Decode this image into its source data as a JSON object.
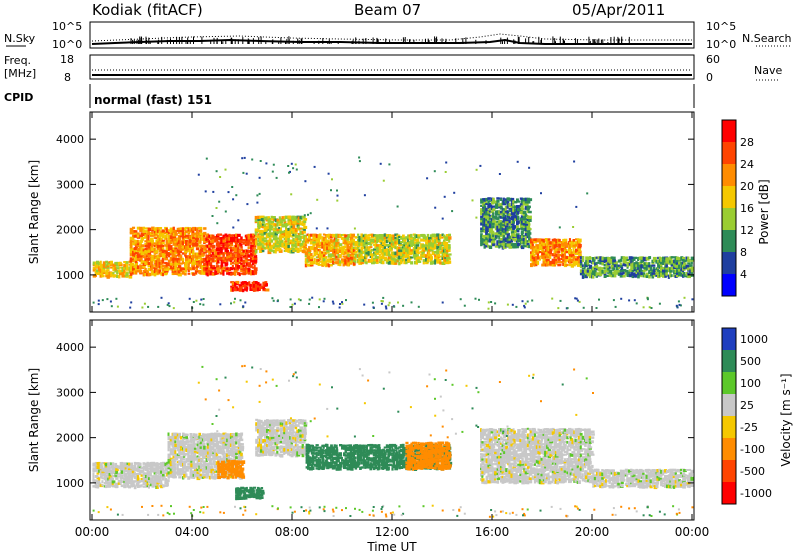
{
  "header": {
    "station": "Kodiak (fitACF)",
    "beam": "Beam 07",
    "date": "05/Apr/2011"
  },
  "noise_panel": {
    "left_label": "N.Sky",
    "right_label": "N.Search",
    "tick_top": "10^5",
    "tick_bottom": "10^0"
  },
  "freq_panel": {
    "left_label_1": "Freq.",
    "left_label_2": "[MHz]",
    "right_label": "Nave",
    "left_tick_top": "18",
    "left_tick_bottom": "8",
    "right_tick_top": "60",
    "right_tick_bottom": "0"
  },
  "cpid_panel": {
    "label": "CPID",
    "mode": "normal (fast) 151"
  },
  "chart_data": [
    {
      "type": "heatmap",
      "ylabel": "Slant Range [km]",
      "x": [
        "00:00",
        "04:00",
        "08:00",
        "12:00",
        "16:00",
        "20:00",
        "00:00"
      ],
      "y_ticks": [
        1000,
        2000,
        3000,
        4000
      ],
      "ylim": [
        180,
        4600
      ],
      "colorbar": {
        "label": "Power [dB]",
        "ticks": [
          "28",
          "24",
          "20",
          "16",
          "12",
          "8",
          "4"
        ],
        "colors": [
          "#ff0000",
          "#ff4400",
          "#ff8c00",
          "#f5c800",
          "#9acd32",
          "#2e8b57",
          "#1f3f9f",
          "#0000ff"
        ]
      },
      "regions": [
        {
          "t": [
            0.0,
            1.5
          ],
          "r": [
            950,
            1300
          ],
          "value": 18
        },
        {
          "t": [
            1.5,
            4.5
          ],
          "r": [
            1000,
            2050
          ],
          "value": 22
        },
        {
          "t": [
            4.5,
            6.5
          ],
          "r": [
            1000,
            1900
          ],
          "value": 26
        },
        {
          "t": [
            5.5,
            7.0
          ],
          "r": [
            650,
            850
          ],
          "value": 28
        },
        {
          "t": [
            6.5,
            8.5
          ],
          "r": [
            1500,
            2300
          ],
          "value": 16
        },
        {
          "t": [
            8.5,
            10.5
          ],
          "r": [
            1200,
            1900
          ],
          "value": 20
        },
        {
          "t": [
            10.5,
            14.3
          ],
          "r": [
            1250,
            1900
          ],
          "value": 16
        },
        {
          "t": [
            15.5,
            17.5
          ],
          "r": [
            1600,
            2700
          ],
          "value": 10
        },
        {
          "t": [
            17.5,
            19.5
          ],
          "r": [
            1200,
            1800
          ],
          "value": 22
        },
        {
          "t": [
            19.5,
            24.0
          ],
          "r": [
            950,
            1400
          ],
          "value": 11
        }
      ]
    },
    {
      "type": "heatmap",
      "ylabel": "Slant Range [km]",
      "xlabel": "Time UT",
      "x": [
        "00:00",
        "04:00",
        "08:00",
        "12:00",
        "16:00",
        "20:00",
        "00:00"
      ],
      "y_ticks": [
        1000,
        2000,
        3000,
        4000
      ],
      "ylim": [
        180,
        4600
      ],
      "colorbar": {
        "label": "Velocity [m s⁻¹]",
        "ticks": [
          "1000",
          "500",
          "100",
          "25",
          "-25",
          "-100",
          "-500",
          "-1000"
        ],
        "colors": [
          "#1f3fbf",
          "#2e8b57",
          "#5cc82a",
          "#c8c8c8",
          "#f5c800",
          "#ff8c00",
          "#ff4400",
          "#ff0000"
        ]
      },
      "regions": [
        {
          "t": [
            0.0,
            3.0
          ],
          "r": [
            900,
            1450
          ],
          "value": 0
        },
        {
          "t": [
            3.0,
            6.0
          ],
          "r": [
            1100,
            2100
          ],
          "value": 0
        },
        {
          "t": [
            5.7,
            6.8
          ],
          "r": [
            650,
            900
          ],
          "value": 150
        },
        {
          "t": [
            5.0,
            6.0
          ],
          "r": [
            1100,
            1500
          ],
          "value": -200
        },
        {
          "t": [
            6.5,
            8.5
          ],
          "r": [
            1600,
            2400
          ],
          "value": 0
        },
        {
          "t": [
            8.5,
            14.3
          ],
          "r": [
            1300,
            1850
          ],
          "value": 300
        },
        {
          "t": [
            12.5,
            14.3
          ],
          "r": [
            1300,
            1900
          ],
          "value": -200
        },
        {
          "t": [
            15.5,
            20.0
          ],
          "r": [
            1000,
            2200
          ],
          "value": 0
        },
        {
          "t": [
            20.0,
            24.0
          ],
          "r": [
            900,
            1300
          ],
          "value": 0
        }
      ]
    }
  ]
}
